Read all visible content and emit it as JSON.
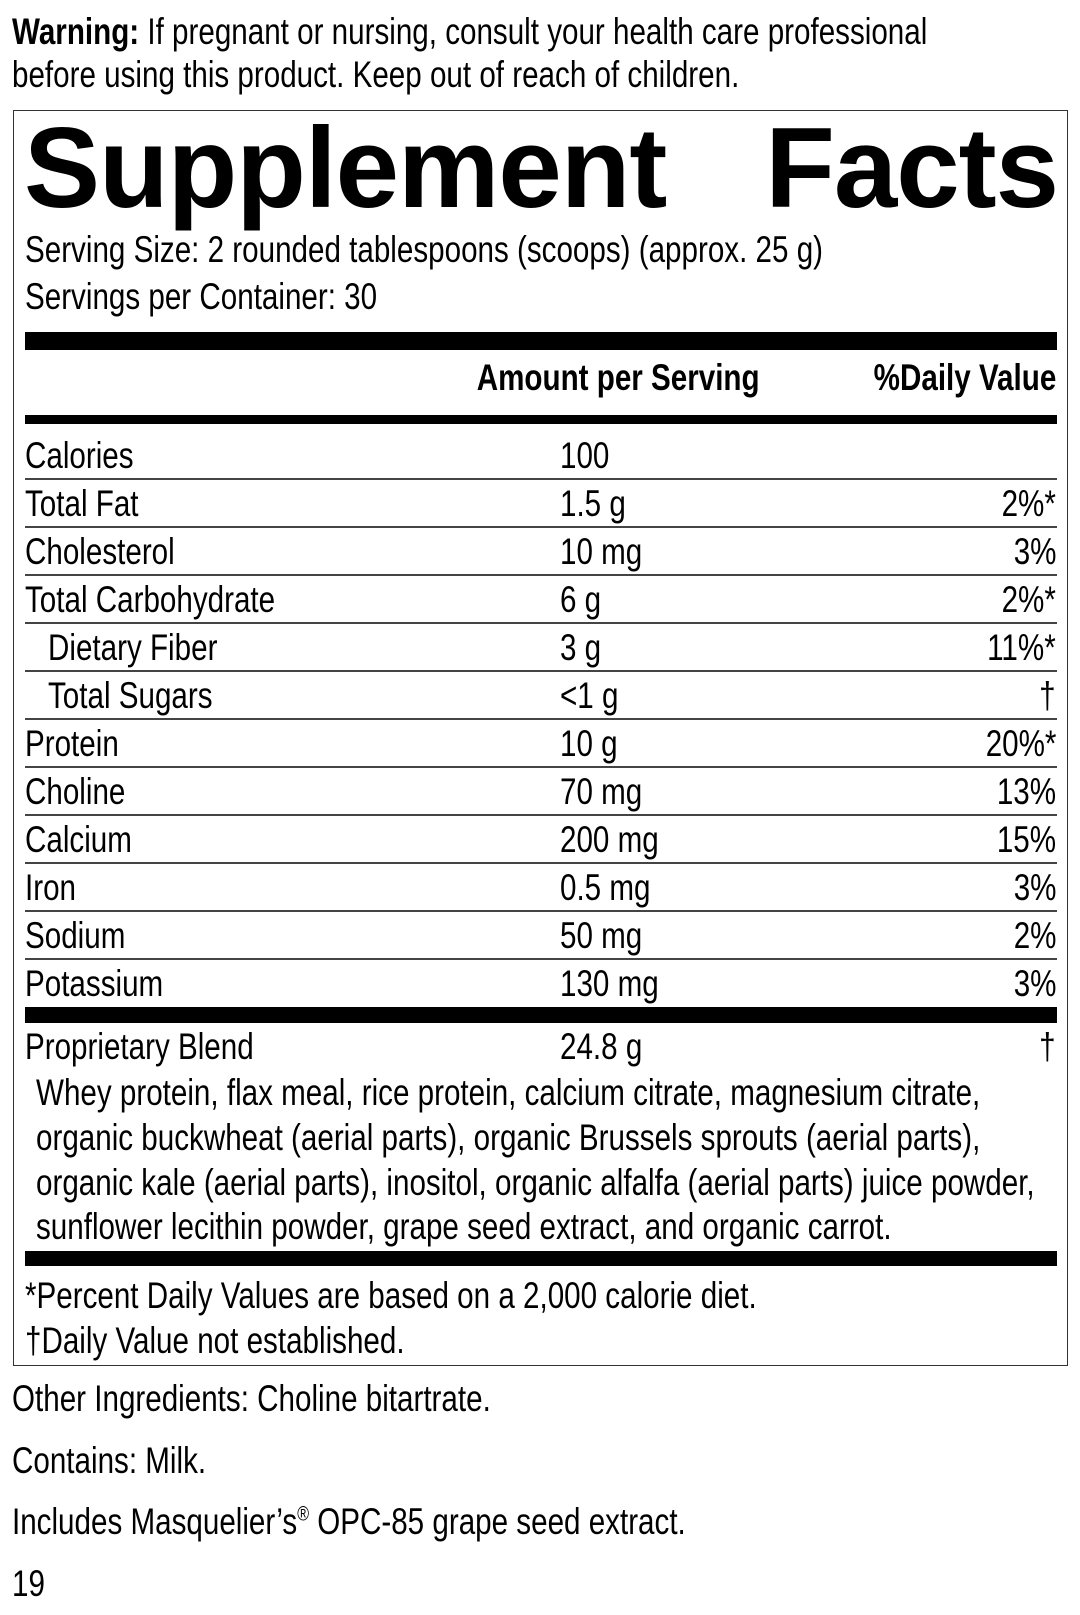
{
  "warning": {
    "label": "Warning:",
    "line1": "If pregnant or nursing, consult your health care professional",
    "line2": "before using this product. Keep out of reach of children."
  },
  "facts": {
    "title_word1": "Supplement",
    "title_word2": "Facts",
    "serving_size": "Serving Size: 2 rounded tablespoons (scoops) (approx. 25 g)",
    "servings_per_container": "Servings per Container: 30",
    "header_amount": "Amount per Serving",
    "header_dv": "%Daily Value",
    "rows": [
      {
        "name": "Calories",
        "amount": "100",
        "dv": "",
        "indent": false
      },
      {
        "name": "Total Fat",
        "amount": "1.5 g",
        "dv": "2%*",
        "indent": false
      },
      {
        "name": "Cholesterol",
        "amount": "10 mg",
        "dv": "3%",
        "indent": false
      },
      {
        "name": "Total Carbohydrate",
        "amount": "6 g",
        "dv": "2%*",
        "indent": false
      },
      {
        "name": "Dietary Fiber",
        "amount": "3 g",
        "dv": "11%*",
        "indent": true
      },
      {
        "name": "Total Sugars",
        "amount": "<1 g",
        "dv": "†",
        "indent": true
      },
      {
        "name": "Protein",
        "amount": "10 g",
        "dv": "20%*",
        "indent": false
      },
      {
        "name": "Choline",
        "amount": "70 mg",
        "dv": "13%",
        "indent": false
      },
      {
        "name": "Calcium",
        "amount": "200 mg",
        "dv": "15%",
        "indent": false
      },
      {
        "name": "Iron",
        "amount": "0.5 mg",
        "dv": "3%",
        "indent": false
      },
      {
        "name": "Sodium",
        "amount": "50 mg",
        "dv": "2%",
        "indent": false
      },
      {
        "name": "Potassium",
        "amount": "130 mg",
        "dv": "3%",
        "indent": false
      }
    ],
    "blend": {
      "name": "Proprietary Blend",
      "amount": "24.8 g",
      "dv": "†",
      "ingredients_lines": [
        "Whey protein, flax meal, rice protein, calcium citrate, magnesium citrate,",
        "organic buckwheat (aerial parts), organic Brussels sprouts (aerial parts),",
        "organic kale (aerial parts), inositol, organic alfalfa (aerial parts) juice powder,",
        "sunflower lecithin powder, grape seed extract, and organic carrot."
      ]
    },
    "footnote1": "*Percent Daily Values are based on a 2,000 calorie diet.",
    "footnote2": "†Daily Value not established."
  },
  "other_ingredients": "Other Ingredients: Choline bitartrate.",
  "contains": "Contains: Milk.",
  "includes_pre": "Includes Masquelier’s",
  "includes_reg": "®",
  "includes_post": " OPC-85 grape seed extract.",
  "page_number": "19"
}
